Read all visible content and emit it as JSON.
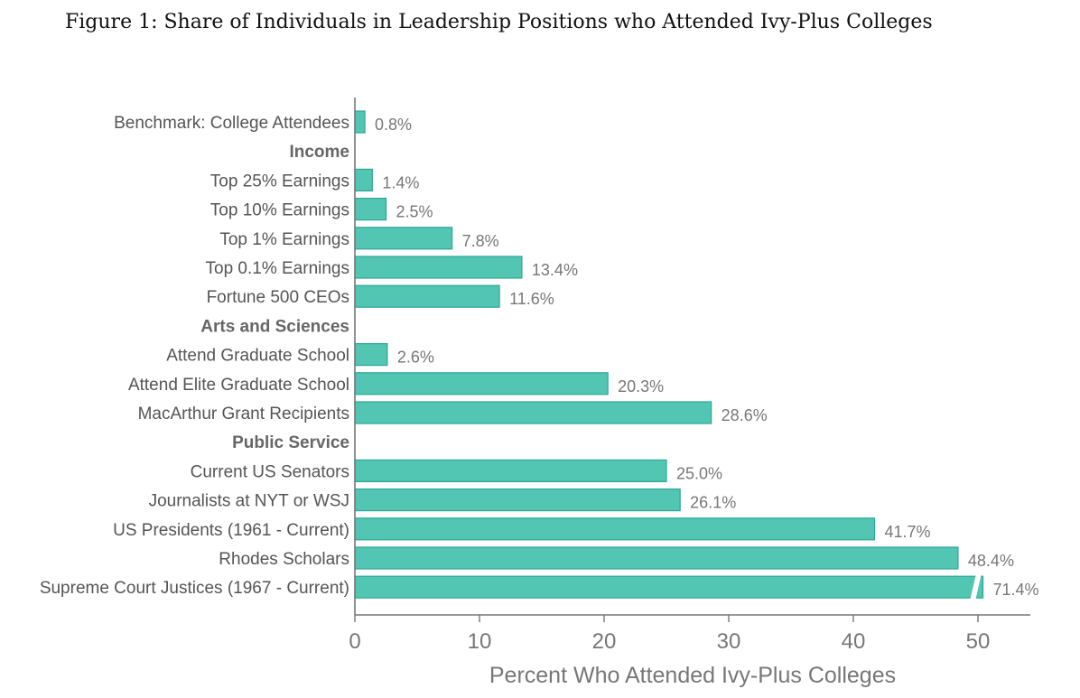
{
  "figure_title": "Figure 1: Share of Individuals in Leadership Positions who Attended Ivy-Plus Colleges",
  "chart_data": {
    "type": "bar",
    "orientation": "horizontal",
    "title": "Figure 1: Share of Individuals in Leadership Positions who Attended Ivy-Plus Colleges",
    "xlabel": "Percent Who Attended Ivy-Plus Colleges",
    "ylabel": "",
    "xlim": [
      0,
      54
    ],
    "xticks": [
      0,
      10,
      20,
      30,
      40,
      50
    ],
    "bar_color": "#52c5b3",
    "bar_edge_color": "#2aa894",
    "rows": [
      {
        "label": "Benchmark: College Attendees",
        "value": 0.8,
        "value_label": "0.8%",
        "is_group": false
      },
      {
        "label": "Income",
        "value": null,
        "value_label": "",
        "is_group": true
      },
      {
        "label": "Top 25% Earnings",
        "value": 1.4,
        "value_label": "1.4%",
        "is_group": false
      },
      {
        "label": "Top 10% Earnings",
        "value": 2.5,
        "value_label": "2.5%",
        "is_group": false
      },
      {
        "label": "Top 1% Earnings",
        "value": 7.8,
        "value_label": "7.8%",
        "is_group": false
      },
      {
        "label": "Top 0.1% Earnings",
        "value": 13.4,
        "value_label": "13.4%",
        "is_group": false
      },
      {
        "label": "Fortune 500 CEOs",
        "value": 11.6,
        "value_label": "11.6%",
        "is_group": false
      },
      {
        "label": "Arts and Sciences",
        "value": null,
        "value_label": "",
        "is_group": true
      },
      {
        "label": "Attend Graduate School",
        "value": 2.6,
        "value_label": "2.6%",
        "is_group": false
      },
      {
        "label": "Attend Elite Graduate School",
        "value": 20.3,
        "value_label": "20.3%",
        "is_group": false
      },
      {
        "label": "MacArthur Grant Recipients",
        "value": 28.6,
        "value_label": "28.6%",
        "is_group": false
      },
      {
        "label": "Public Service",
        "value": null,
        "value_label": "",
        "is_group": true
      },
      {
        "label": "Current US Senators",
        "value": 25.0,
        "value_label": "25.0%",
        "is_group": false
      },
      {
        "label": "Journalists at NYT or WSJ",
        "value": 26.1,
        "value_label": "26.1%",
        "is_group": false
      },
      {
        "label": "US Presidents (1961 - Current)",
        "value": 41.7,
        "value_label": "41.7%",
        "is_group": false
      },
      {
        "label": "Rhodes Scholars",
        "value": 48.4,
        "value_label": "48.4%",
        "is_group": false
      },
      {
        "label": "Supreme Court Justices (1967 - Current)",
        "value": 71.4,
        "value_label": "71.4%",
        "is_group": false,
        "axis_break": true
      }
    ]
  }
}
